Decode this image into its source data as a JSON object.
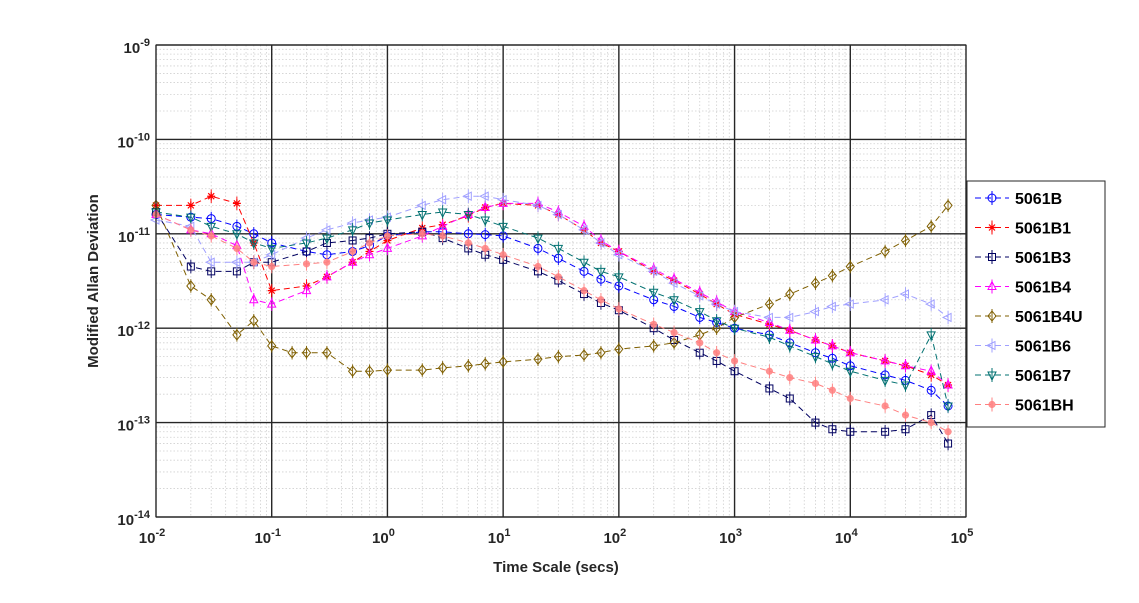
{
  "chart_data": {
    "type": "line",
    "title": "",
    "xlabel": "Time Scale (secs)",
    "ylabel": "Modified Allan Deviation",
    "x_scale": "log",
    "y_scale": "log",
    "xlim": [
      0.01,
      100000
    ],
    "ylim": [
      1e-14,
      1e-09
    ],
    "grid": "on (major and minor)",
    "legend_position": "right",
    "x_ticks": [
      {
        "base": "10",
        "exp": "-2",
        "value": 0.01
      },
      {
        "base": "10",
        "exp": "-1",
        "value": 0.1
      },
      {
        "base": "10",
        "exp": "0",
        "value": 1
      },
      {
        "base": "10",
        "exp": "1",
        "value": 10
      },
      {
        "base": "10",
        "exp": "2",
        "value": 100
      },
      {
        "base": "10",
        "exp": "3",
        "value": 1000
      },
      {
        "base": "10",
        "exp": "4",
        "value": 10000
      },
      {
        "base": "10",
        "exp": "5",
        "value": 100000
      }
    ],
    "y_ticks": [
      {
        "base": "10",
        "exp": "-14",
        "value": 1e-14
      },
      {
        "base": "10",
        "exp": "-13",
        "value": 1e-13
      },
      {
        "base": "10",
        "exp": "-12",
        "value": 1e-12
      },
      {
        "base": "10",
        "exp": "-11",
        "value": 1e-11
      },
      {
        "base": "10",
        "exp": "-10",
        "value": 1e-10
      },
      {
        "base": "10",
        "exp": "-9",
        "value": 1e-09
      }
    ],
    "series": [
      {
        "name": "5061B",
        "color": "#0000ff",
        "marker": "circle",
        "x": [
          0.01,
          0.02,
          0.03,
          0.05,
          0.07,
          0.1,
          0.2,
          0.3,
          0.5,
          0.7,
          1,
          2,
          3,
          5,
          7,
          10,
          20,
          30,
          50,
          70,
          100,
          200,
          300,
          500,
          700,
          1000,
          2000,
          3000,
          5000,
          7000,
          10000,
          20000,
          30000,
          50000,
          70000
        ],
        "y": [
          1.6e-11,
          1.5e-11,
          1.45e-11,
          1.2e-11,
          1e-11,
          8e-12,
          6.5e-12,
          6e-12,
          6.5e-12,
          7.5e-12,
          9.5e-12,
          1.05e-11,
          1.05e-11,
          1e-11,
          9.8e-12,
          9.5e-12,
          7e-12,
          5.5e-12,
          4e-12,
          3.3e-12,
          2.8e-12,
          2e-12,
          1.7e-12,
          1.3e-12,
          1.15e-12,
          1e-12,
          8.5e-13,
          7e-13,
          5.5e-13,
          4.8e-13,
          4e-13,
          3.2e-13,
          2.8e-13,
          2.2e-13,
          1.5e-13
        ]
      },
      {
        "name": "5061B1",
        "color": "#ff0000",
        "marker": "star",
        "x": [
          0.01,
          0.02,
          0.03,
          0.05,
          0.07,
          0.1,
          0.2,
          0.3,
          0.5,
          0.7,
          1,
          2,
          3,
          5,
          7,
          10,
          20,
          30,
          50,
          70,
          100,
          200,
          300,
          500,
          700,
          1000,
          2000,
          3000,
          5000,
          7000,
          10000,
          20000,
          30000,
          50000,
          70000
        ],
        "y": [
          2e-11,
          2e-11,
          2.5e-11,
          2.1e-11,
          8e-12,
          2.5e-12,
          2.8e-12,
          3.5e-12,
          5e-12,
          6.5e-12,
          8.5e-12,
          1.15e-11,
          1.25e-11,
          1.55e-11,
          1.9e-11,
          2.1e-11,
          2e-11,
          1.6e-11,
          1.1e-11,
          8e-12,
          6.5e-12,
          4e-12,
          3.2e-12,
          2.3e-12,
          1.8e-12,
          1.4e-12,
          1.1e-12,
          9.5e-13,
          7.5e-13,
          6.5e-13,
          5.5e-13,
          4.5e-13,
          4e-13,
          3.2e-13,
          2.5e-13
        ]
      },
      {
        "name": "5061B3",
        "color": "#000060",
        "marker": "square",
        "x": [
          0.01,
          0.02,
          0.03,
          0.05,
          0.07,
          0.1,
          0.2,
          0.3,
          0.5,
          0.7,
          1,
          2,
          3,
          5,
          7,
          10,
          20,
          30,
          50,
          70,
          100,
          200,
          300,
          500,
          700,
          1000,
          2000,
          3000,
          5000,
          7000,
          10000,
          20000,
          30000,
          50000,
          70000
        ],
        "y": [
          1.7e-11,
          4.5e-12,
          4e-12,
          4e-12,
          5e-12,
          5e-12,
          6.5e-12,
          8e-12,
          8.5e-12,
          9e-12,
          1e-11,
          1.05e-11,
          9e-12,
          7e-12,
          6e-12,
          5.3e-12,
          4e-12,
          3.2e-12,
          2.3e-12,
          1.85e-12,
          1.55e-12,
          1e-12,
          7.5e-13,
          5.5e-13,
          4.5e-13,
          3.5e-13,
          2.3e-13,
          1.8e-13,
          1e-13,
          8.5e-14,
          8e-14,
          8e-14,
          8.5e-14,
          1.2e-13,
          6e-14
        ]
      },
      {
        "name": "5061B4",
        "color": "#ff00ff",
        "marker": "triangle-up",
        "x": [
          0.01,
          0.02,
          0.03,
          0.05,
          0.07,
          0.1,
          0.2,
          0.3,
          0.5,
          0.7,
          1,
          2,
          3,
          5,
          7,
          10,
          20,
          30,
          50,
          70,
          100,
          200,
          300,
          500,
          700,
          1000,
          2000,
          3000,
          5000,
          7000,
          10000,
          20000,
          30000,
          50000,
          70000
        ],
        "y": [
          1.6e-11,
          1.1e-11,
          1e-11,
          7.5e-12,
          2e-12,
          1.8e-12,
          2.5e-12,
          3.5e-12,
          5e-12,
          6e-12,
          7e-12,
          9.5e-12,
          1.2e-11,
          1.6e-11,
          1.9e-11,
          2.1e-11,
          2.1e-11,
          1.7e-11,
          1.2e-11,
          8.5e-12,
          6.5e-12,
          4.2e-12,
          3.3e-12,
          2.4e-12,
          1.9e-12,
          1.5e-12,
          1.15e-12,
          9.5e-13,
          7.5e-13,
          6.5e-13,
          5.5e-13,
          4.5e-13,
          4e-13,
          3.5e-13,
          2.5e-13
        ]
      },
      {
        "name": "5061B4U",
        "color": "#7f5f00",
        "marker": "diamond",
        "x": [
          0.01,
          0.02,
          0.03,
          0.05,
          0.07,
          0.1,
          0.15,
          0.2,
          0.3,
          0.5,
          0.7,
          1,
          2,
          3,
          5,
          7,
          10,
          20,
          30,
          50,
          70,
          100,
          200,
          300,
          500,
          700,
          1000,
          2000,
          3000,
          5000,
          7000,
          10000,
          20000,
          30000,
          50000,
          70000
        ],
        "y": [
          2e-11,
          2.8e-12,
          2e-12,
          8.5e-13,
          1.2e-12,
          6.5e-13,
          5.5e-13,
          5.5e-13,
          5.5e-13,
          3.5e-13,
          3.5e-13,
          3.6e-13,
          3.6e-13,
          3.8e-13,
          4e-13,
          4.2e-13,
          4.4e-13,
          4.7e-13,
          5e-13,
          5.2e-13,
          5.5e-13,
          6e-13,
          6.5e-13,
          7e-13,
          8.5e-13,
          1e-12,
          1.3e-12,
          1.8e-12,
          2.3e-12,
          3e-12,
          3.6e-12,
          4.5e-12,
          6.5e-12,
          8.5e-12,
          1.2e-11,
          2e-11
        ]
      },
      {
        "name": "5061B6",
        "color": "#a0a0ff",
        "marker": "triangle-left",
        "x": [
          0.01,
          0.02,
          0.03,
          0.05,
          0.07,
          0.1,
          0.2,
          0.3,
          0.5,
          0.7,
          1,
          2,
          3,
          5,
          7,
          10,
          20,
          30,
          50,
          70,
          100,
          200,
          300,
          500,
          700,
          1000,
          2000,
          3000,
          5000,
          7000,
          10000,
          20000,
          30000,
          50000,
          70000
        ],
        "y": [
          1.4e-11,
          1.2e-11,
          5e-12,
          5e-12,
          5e-12,
          6e-12,
          9e-12,
          1.1e-11,
          1.3e-11,
          1.4e-11,
          1.5e-11,
          2e-11,
          2.3e-11,
          2.5e-11,
          2.5e-11,
          2.3e-11,
          2e-11,
          1.6e-11,
          1.1e-11,
          8e-12,
          6e-12,
          4e-12,
          3e-12,
          2.2e-12,
          1.8e-12,
          1.5e-12,
          1.3e-12,
          1.3e-12,
          1.5e-12,
          1.7e-12,
          1.8e-12,
          2e-12,
          2.3e-12,
          1.8e-12,
          1.3e-12
        ]
      },
      {
        "name": "5061B7",
        "color": "#007070",
        "marker": "triangle-down",
        "x": [
          0.01,
          0.02,
          0.03,
          0.05,
          0.07,
          0.1,
          0.2,
          0.3,
          0.5,
          0.7,
          1,
          2,
          3,
          5,
          7,
          10,
          20,
          30,
          50,
          70,
          100,
          200,
          300,
          500,
          700,
          1000,
          2000,
          3000,
          5000,
          7000,
          10000,
          20000,
          30000,
          50000,
          70000
        ],
        "y": [
          1.7e-11,
          1.5e-11,
          1.2e-11,
          1e-11,
          8e-12,
          7e-12,
          8e-12,
          9e-12,
          1.1e-11,
          1.3e-11,
          1.4e-11,
          1.6e-11,
          1.7e-11,
          1.6e-11,
          1.4e-11,
          1.2e-11,
          9e-12,
          7e-12,
          5e-12,
          4e-12,
          3.5e-12,
          2.4e-12,
          2e-12,
          1.5e-12,
          1.2e-12,
          1e-12,
          8e-13,
          6.5e-13,
          5e-13,
          4.2e-13,
          3.5e-13,
          2.8e-13,
          2.5e-13,
          8.5e-13,
          1.5e-13
        ]
      },
      {
        "name": "5061BH",
        "color": "#ff8080",
        "marker": "asterisk",
        "x": [
          0.01,
          0.02,
          0.03,
          0.05,
          0.07,
          0.1,
          0.2,
          0.3,
          0.5,
          0.7,
          1,
          2,
          3,
          5,
          7,
          10,
          20,
          30,
          50,
          70,
          100,
          200,
          300,
          500,
          700,
          1000,
          2000,
          3000,
          5000,
          7000,
          10000,
          20000,
          30000,
          50000,
          70000
        ],
        "y": [
          1.6e-11,
          1.1e-11,
          9.5e-12,
          7e-12,
          5e-12,
          4.5e-12,
          4.8e-12,
          5e-12,
          6.5e-12,
          8e-12,
          9.5e-12,
          1e-11,
          9.5e-12,
          8e-12,
          7e-12,
          6e-12,
          4.5e-12,
          3.5e-12,
          2.5e-12,
          2e-12,
          1.6e-12,
          1.1e-12,
          9e-13,
          7e-13,
          5.5e-13,
          4.5e-13,
          3.5e-13,
          3e-13,
          2.6e-13,
          2.2e-13,
          1.8e-13,
          1.5e-13,
          1.2e-13,
          1e-13,
          8e-14
        ]
      }
    ]
  }
}
